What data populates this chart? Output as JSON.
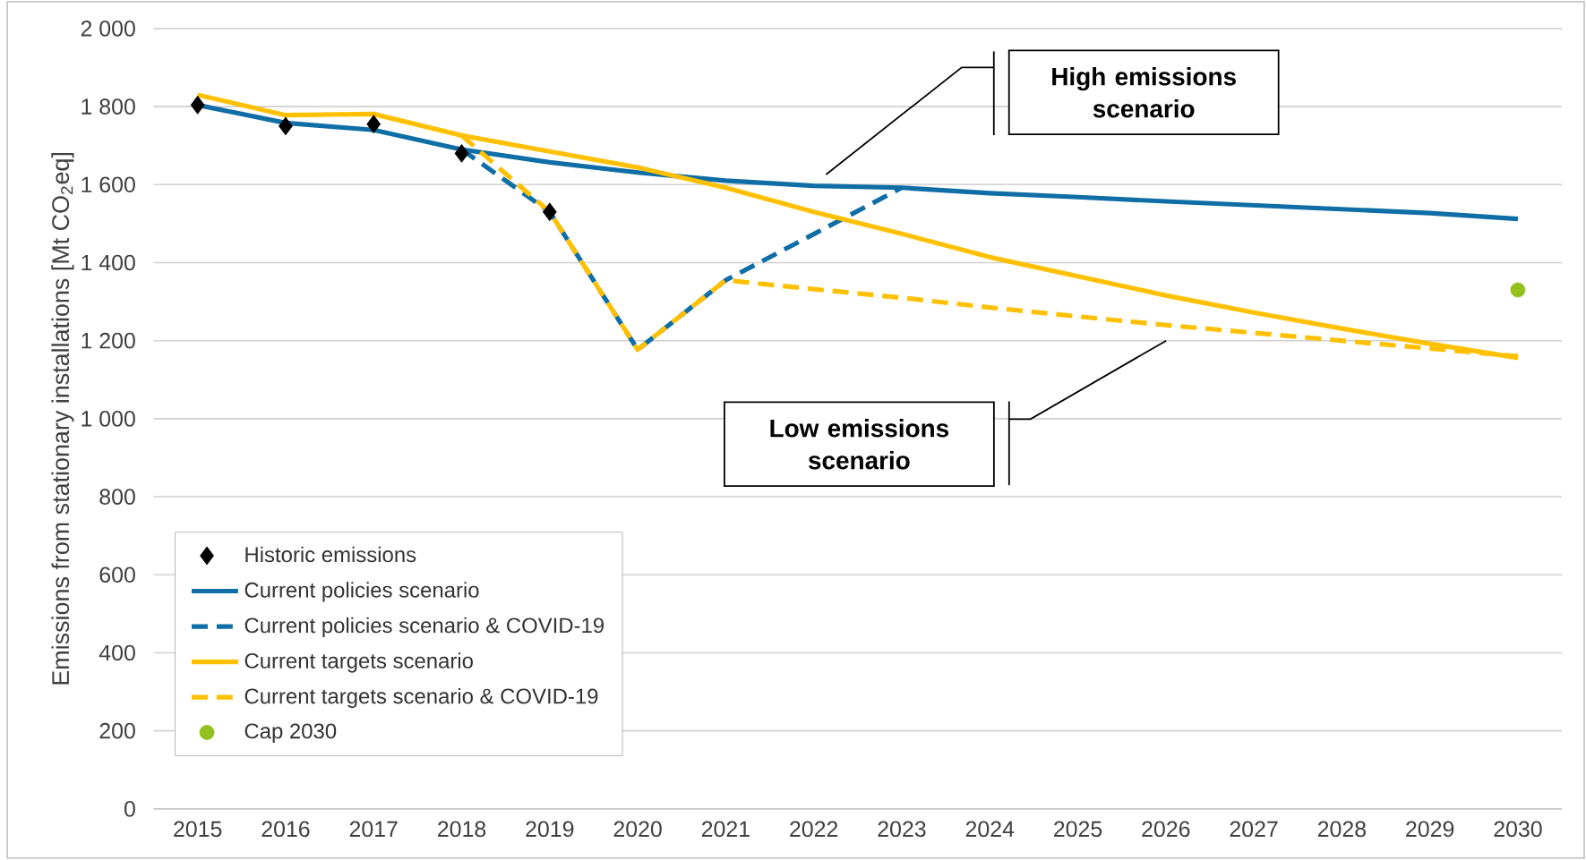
{
  "chart_data": {
    "type": "line",
    "ylabel": "Emissions from stationary installations [Mt CO$_{2}$eq]",
    "x": [
      2015,
      2016,
      2017,
      2018,
      2019,
      2020,
      2021,
      2022,
      2023,
      2024,
      2025,
      2026,
      2027,
      2028,
      2029,
      2030
    ],
    "xlim": [
      2014.5,
      2030.5
    ],
    "xticks": [
      2015,
      2016,
      2017,
      2018,
      2019,
      2020,
      2021,
      2022,
      2023,
      2024,
      2025,
      2026,
      2027,
      2028,
      2029,
      2030
    ],
    "ylim": [
      0,
      2000
    ],
    "yticks": [
      0,
      200,
      400,
      600,
      800,
      {
        "value": 1000,
        "label": "1 000"
      },
      {
        "value": 1200,
        "label": "1 200"
      },
      {
        "value": 1400,
        "label": "1 400"
      },
      {
        "value": 1600,
        "label": "1 600"
      },
      {
        "value": 1800,
        "label": "1 800"
      },
      {
        "value": 2000,
        "label": "2 000"
      }
    ],
    "grid": "y",
    "legend": "bottom left",
    "series": [
      {
        "name": "Historic emissions",
        "type": "scatter",
        "marker": "diamond",
        "color": "#000000",
        "x": [
          2015,
          2016,
          2017,
          2018,
          2019
        ],
        "values": [
          1804,
          1750,
          1755,
          1680,
          1530
        ]
      },
      {
        "name": "Current policies scenario",
        "color": "#0e6ea5",
        "line_style": "solid",
        "values": [
          1804,
          1758,
          1740,
          1690,
          1657,
          1631,
          1610,
          1597,
          1592,
          1578,
          1568,
          1557,
          1547,
          1537,
          1527,
          1512
        ]
      },
      {
        "name": "Current policies scenario & COVID-19",
        "color": "#0e6ea5",
        "line_style": "dashed",
        "x": [
          2018,
          2019,
          2020,
          2021,
          2022,
          2023
        ],
        "values": [
          1690,
          1530,
          1177,
          1355,
          1473,
          1592
        ]
      },
      {
        "name": "Current targets scenario",
        "color": "#ffc000",
        "line_style": "solid",
        "values": [
          1830,
          1778,
          1781,
          1726,
          1685,
          1644,
          1592,
          1530,
          1474,
          1414,
          1365,
          1316,
          1272,
          1231,
          1192,
          1156
        ]
      },
      {
        "name": "Current targets scenario & COVID-19",
        "color": "#ffc000",
        "line_style": "dashed",
        "x": [
          2018,
          2019,
          2020,
          2021,
          2022,
          2023,
          2024,
          2025,
          2026,
          2027,
          2028,
          2029,
          2030
        ],
        "values": [
          1726,
          1530,
          1177,
          1355,
          1332,
          1310,
          1285,
          1262,
          1240,
          1220,
          1200,
          1180,
          1160
        ]
      },
      {
        "name": "Cap 2030",
        "type": "scatter",
        "marker": "circle",
        "color": "#92c01f",
        "x": [
          2030
        ],
        "values": [
          1330
        ]
      }
    ],
    "annotations": [
      "High emissions scenario",
      "Low emissions scenario"
    ]
  }
}
